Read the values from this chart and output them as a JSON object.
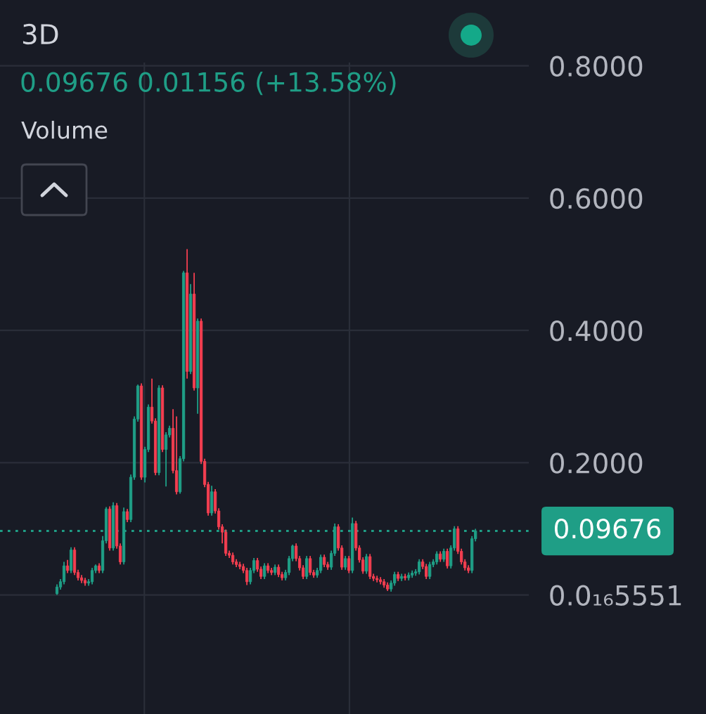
{
  "chart_data": {
    "type": "candlestick",
    "title": "3D",
    "annotations": [
      "0.09676 0.01156 (+13.58%)",
      "Volume"
    ],
    "categories": [
      null,
      null,
      null,
      null,
      null,
      null,
      null,
      null,
      null,
      null,
      null,
      null,
      null,
      null,
      null,
      null,
      null,
      null,
      null,
      null,
      null,
      null,
      null,
      null,
      null,
      null,
      null,
      null,
      null,
      null,
      null,
      null,
      null,
      null,
      null,
      null,
      null,
      null,
      null,
      null,
      null,
      null,
      null,
      null,
      null,
      null,
      null,
      null,
      null,
      null,
      null,
      null,
      null,
      null,
      null,
      null,
      null,
      null,
      null,
      null,
      null,
      null,
      null,
      null,
      null,
      null,
      null,
      null,
      null,
      null,
      null,
      null,
      null,
      null,
      null,
      null,
      null,
      null,
      null,
      null,
      null,
      null,
      null,
      null,
      null,
      null,
      null,
      null,
      null,
      null,
      null,
      null,
      null,
      null,
      null,
      null,
      null,
      null,
      null,
      null,
      null,
      null,
      null,
      null,
      null,
      null,
      null,
      null,
      null,
      null,
      null,
      null,
      null,
      null,
      null,
      null,
      null,
      null,
      null,
      null
    ],
    "ohlc": [
      [
        0.002,
        0.016,
        0.0,
        0.012
      ],
      [
        0.012,
        0.024,
        0.008,
        0.02
      ],
      [
        0.02,
        0.05,
        0.016,
        0.044
      ],
      [
        0.044,
        0.053,
        0.033,
        0.037
      ],
      [
        0.037,
        0.072,
        0.033,
        0.068
      ],
      [
        0.068,
        0.072,
        0.03,
        0.034
      ],
      [
        0.034,
        0.038,
        0.022,
        0.026
      ],
      [
        0.026,
        0.03,
        0.018,
        0.022
      ],
      [
        0.022,
        0.026,
        0.014,
        0.018
      ],
      [
        0.018,
        0.024,
        0.014,
        0.02
      ],
      [
        0.02,
        0.041,
        0.016,
        0.037
      ],
      [
        0.037,
        0.046,
        0.033,
        0.044
      ],
      [
        0.044,
        0.048,
        0.033,
        0.037
      ],
      [
        0.037,
        0.089,
        0.033,
        0.082
      ],
      [
        0.082,
        0.133,
        0.078,
        0.13
      ],
      [
        0.13,
        0.134,
        0.067,
        0.071
      ],
      [
        0.071,
        0.14,
        0.067,
        0.135
      ],
      [
        0.135,
        0.139,
        0.07,
        0.074
      ],
      [
        0.074,
        0.078,
        0.046,
        0.05
      ],
      [
        0.05,
        0.132,
        0.046,
        0.126
      ],
      [
        0.126,
        0.13,
        0.11,
        0.114
      ],
      [
        0.114,
        0.182,
        0.11,
        0.178
      ],
      [
        0.178,
        0.27,
        0.174,
        0.266
      ],
      [
        0.266,
        0.318,
        0.262,
        0.316
      ],
      [
        0.316,
        0.32,
        0.174,
        0.178
      ],
      [
        0.178,
        0.224,
        0.17,
        0.22
      ],
      [
        0.22,
        0.288,
        0.216,
        0.284
      ],
      [
        0.284,
        0.327,
        0.259,
        0.263
      ],
      [
        0.263,
        0.267,
        0.181,
        0.185
      ],
      [
        0.185,
        0.317,
        0.181,
        0.313
      ],
      [
        0.313,
        0.317,
        0.216,
        0.22
      ],
      [
        0.22,
        0.246,
        0.164,
        0.242
      ],
      [
        0.242,
        0.256,
        0.238,
        0.252
      ],
      [
        0.252,
        0.281,
        0.184,
        0.188
      ],
      [
        0.188,
        0.27,
        0.152,
        0.156
      ],
      [
        0.156,
        0.21,
        0.153,
        0.206
      ],
      [
        0.206,
        0.49,
        0.202,
        0.487
      ],
      [
        0.487,
        0.523,
        0.327,
        0.338
      ],
      [
        0.338,
        0.47,
        0.334,
        0.455
      ],
      [
        0.455,
        0.487,
        0.309,
        0.313
      ],
      [
        0.313,
        0.418,
        0.274,
        0.414
      ],
      [
        0.414,
        0.418,
        0.198,
        0.202
      ],
      [
        0.202,
        0.206,
        0.163,
        0.167
      ],
      [
        0.167,
        0.171,
        0.12,
        0.124
      ],
      [
        0.124,
        0.165,
        0.12,
        0.156
      ],
      [
        0.156,
        0.16,
        0.123,
        0.127
      ],
      [
        0.127,
        0.131,
        0.099,
        0.103
      ],
      [
        0.103,
        0.107,
        0.078,
        0.095
      ],
      [
        0.095,
        0.099,
        0.059,
        0.063
      ],
      [
        0.063,
        0.067,
        0.056,
        0.06
      ],
      [
        0.06,
        0.064,
        0.046,
        0.05
      ],
      [
        0.05,
        0.054,
        0.042,
        0.046
      ],
      [
        0.046,
        0.05,
        0.039,
        0.043
      ],
      [
        0.043,
        0.047,
        0.033,
        0.037
      ],
      [
        0.037,
        0.041,
        0.015,
        0.02
      ],
      [
        0.02,
        0.041,
        0.016,
        0.037
      ],
      [
        0.037,
        0.056,
        0.033,
        0.052
      ],
      [
        0.052,
        0.056,
        0.035,
        0.039
      ],
      [
        0.039,
        0.043,
        0.024,
        0.028
      ],
      [
        0.028,
        0.048,
        0.024,
        0.044
      ],
      [
        0.044,
        0.048,
        0.033,
        0.037
      ],
      [
        0.037,
        0.041,
        0.03,
        0.034
      ],
      [
        0.034,
        0.046,
        0.03,
        0.042
      ],
      [
        0.042,
        0.046,
        0.027,
        0.031
      ],
      [
        0.031,
        0.035,
        0.022,
        0.026
      ],
      [
        0.026,
        0.038,
        0.022,
        0.034
      ],
      [
        0.034,
        0.059,
        0.03,
        0.055
      ],
      [
        0.055,
        0.076,
        0.051,
        0.074
      ],
      [
        0.074,
        0.078,
        0.051,
        0.055
      ],
      [
        0.055,
        0.059,
        0.037,
        0.041
      ],
      [
        0.041,
        0.045,
        0.024,
        0.028
      ],
      [
        0.028,
        0.059,
        0.024,
        0.055
      ],
      [
        0.055,
        0.059,
        0.03,
        0.034
      ],
      [
        0.034,
        0.038,
        0.026,
        0.03
      ],
      [
        0.03,
        0.041,
        0.026,
        0.037
      ],
      [
        0.037,
        0.061,
        0.033,
        0.057
      ],
      [
        0.057,
        0.061,
        0.042,
        0.046
      ],
      [
        0.046,
        0.05,
        0.038,
        0.042
      ],
      [
        0.042,
        0.067,
        0.038,
        0.063
      ],
      [
        0.063,
        0.108,
        0.059,
        0.103
      ],
      [
        0.103,
        0.107,
        0.067,
        0.071
      ],
      [
        0.071,
        0.075,
        0.038,
        0.042
      ],
      [
        0.042,
        0.059,
        0.038,
        0.055
      ],
      [
        0.055,
        0.059,
        0.033,
        0.037
      ],
      [
        0.037,
        0.117,
        0.033,
        0.108
      ],
      [
        0.108,
        0.112,
        0.067,
        0.071
      ],
      [
        0.071,
        0.075,
        0.049,
        0.053
      ],
      [
        0.053,
        0.057,
        0.032,
        0.036
      ],
      [
        0.036,
        0.062,
        0.032,
        0.058
      ],
      [
        0.058,
        0.062,
        0.024,
        0.028
      ],
      [
        0.028,
        0.032,
        0.021,
        0.025
      ],
      [
        0.025,
        0.029,
        0.019,
        0.023
      ],
      [
        0.023,
        0.027,
        0.016,
        0.02
      ],
      [
        0.02,
        0.024,
        0.011,
        0.015
      ],
      [
        0.015,
        0.019,
        0.006,
        0.009
      ],
      [
        0.009,
        0.022,
        0.005,
        0.018
      ],
      [
        0.018,
        0.035,
        0.014,
        0.031
      ],
      [
        0.031,
        0.035,
        0.021,
        0.025
      ],
      [
        0.025,
        0.032,
        0.021,
        0.028
      ],
      [
        0.028,
        0.032,
        0.022,
        0.026
      ],
      [
        0.026,
        0.034,
        0.022,
        0.03
      ],
      [
        0.03,
        0.037,
        0.026,
        0.033
      ],
      [
        0.033,
        0.039,
        0.029,
        0.035
      ],
      [
        0.035,
        0.054,
        0.031,
        0.05
      ],
      [
        0.05,
        0.054,
        0.039,
        0.043
      ],
      [
        0.043,
        0.047,
        0.024,
        0.028
      ],
      [
        0.028,
        0.05,
        0.024,
        0.046
      ],
      [
        0.046,
        0.054,
        0.042,
        0.05
      ],
      [
        0.05,
        0.066,
        0.046,
        0.062
      ],
      [
        0.062,
        0.066,
        0.05,
        0.054
      ],
      [
        0.054,
        0.07,
        0.05,
        0.066
      ],
      [
        0.066,
        0.07,
        0.04,
        0.044
      ],
      [
        0.044,
        0.075,
        0.04,
        0.071
      ],
      [
        0.071,
        0.104,
        0.067,
        0.1
      ],
      [
        0.1,
        0.104,
        0.062,
        0.066
      ],
      [
        0.066,
        0.07,
        0.046,
        0.05
      ],
      [
        0.05,
        0.054,
        0.037,
        0.041
      ],
      [
        0.041,
        0.045,
        0.033,
        0.037
      ],
      [
        0.037,
        0.089,
        0.033,
        0.085
      ],
      [
        0.085,
        0.1,
        0.081,
        0.09676
      ]
    ],
    "colors": [
      "#1f9e86",
      "#1f9e86",
      "#1f9e86",
      "#f23e50",
      "#1f9e86",
      "#f23e50",
      "#f23e50",
      "#f23e50",
      "#f23e50",
      "#1f9e86",
      "#1f9e86",
      "#1f9e86",
      "#f23e50",
      "#1f9e86",
      "#1f9e86",
      "#f23e50",
      "#1f9e86",
      "#f23e50",
      "#f23e50",
      "#1f9e86",
      "#f23e50",
      "#1f9e86",
      "#1f9e86",
      "#1f9e86",
      "#f23e50",
      "#1f9e86",
      "#1f9e86",
      "#f23e50",
      "#f23e50",
      "#1f9e86",
      "#f23e50",
      "#1f9e86",
      "#1f9e86",
      "#f23e50",
      "#f23e50",
      "#1f9e86",
      "#1f9e86",
      "#f23e50",
      "#1f9e86",
      "#f23e50",
      "#1f9e86",
      "#f23e50",
      "#f23e50",
      "#f23e50",
      "#1f9e86",
      "#f23e50",
      "#f23e50",
      "#f23e50",
      "#f23e50",
      "#f23e50",
      "#f23e50",
      "#f23e50",
      "#f23e50",
      "#f23e50",
      "#f23e50",
      "#1f9e86",
      "#1f9e86",
      "#f23e50",
      "#f23e50",
      "#1f9e86",
      "#f23e50",
      "#f23e50",
      "#1f9e86",
      "#f23e50",
      "#f23e50",
      "#1f9e86",
      "#1f9e86",
      "#1f9e86",
      "#f23e50",
      "#f23e50",
      "#f23e50",
      "#1f9e86",
      "#f23e50",
      "#f23e50",
      "#1f9e86",
      "#1f9e86",
      "#f23e50",
      "#f23e50",
      "#1f9e86",
      "#1f9e86",
      "#f23e50",
      "#f23e50",
      "#1f9e86",
      "#f23e50",
      "#1f9e86",
      "#f23e50",
      "#f23e50",
      "#f23e50",
      "#1f9e86",
      "#f23e50",
      "#f23e50",
      "#f23e50",
      "#f23e50",
      "#f23e50",
      "#f23e50",
      "#1f9e86",
      "#1f9e86",
      "#f23e50",
      "#1f9e86",
      "#f23e50",
      "#1f9e86",
      "#1f9e86",
      "#1f9e86",
      "#1f9e86",
      "#f23e50",
      "#f23e50",
      "#1f9e86",
      "#1f9e86",
      "#1f9e86",
      "#f23e50",
      "#1f9e86",
      "#f23e50",
      "#1f9e86",
      "#1f9e86",
      "#f23e50",
      "#f23e50",
      "#f23e50",
      "#f23e50",
      "#1f9e86",
      "#1f9e86"
    ],
    "ylim": [
      -0.18,
      0.805
    ],
    "yticks": [
      {
        "value": 0,
        "label": "0.0₁₆5551"
      },
      {
        "value": 0.2,
        "label": "0.2000"
      },
      {
        "value": 0.4,
        "label": "0.4000"
      },
      {
        "value": 0.6,
        "label": "0.6000"
      },
      {
        "value": 0.8,
        "label": "0.8000"
      }
    ],
    "ref_lines": [
      {
        "axis": "y",
        "value": 0.09676,
        "label": "0.09676",
        "color": "#1f9e86",
        "line_style": "dotted"
      }
    ],
    "grid": true,
    "legend": false,
    "tick_labels": "y"
  }
}
